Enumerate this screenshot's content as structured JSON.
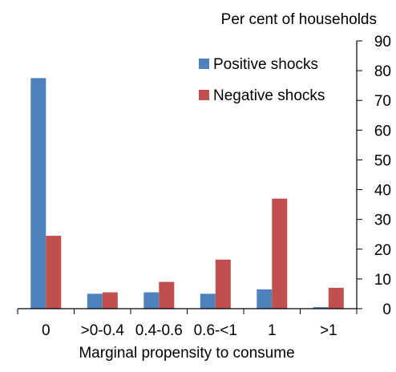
{
  "chart_data": {
    "type": "bar",
    "ylabel": "Per cent of households",
    "xlabel": "Marginal propensity to consume",
    "categories": [
      "0",
      ">0-0.4",
      "0.4-0.6",
      "0.6-<1",
      "1",
      ">1"
    ],
    "series": [
      {
        "name": "Positive shocks",
        "color": "#4f81bd",
        "values": [
          77.5,
          5,
          5.5,
          5,
          6.5,
          0.5
        ]
      },
      {
        "name": "Negative shocks",
        "color": "#c0504d",
        "values": [
          24.5,
          5.5,
          9,
          16.5,
          37,
          7
        ]
      }
    ],
    "ylim": [
      0,
      90
    ],
    "yticks": [
      0,
      10,
      20,
      30,
      40,
      50,
      60,
      70,
      80,
      90
    ],
    "y_axis_side": "right",
    "grid": false,
    "legend_position": "top-right"
  }
}
